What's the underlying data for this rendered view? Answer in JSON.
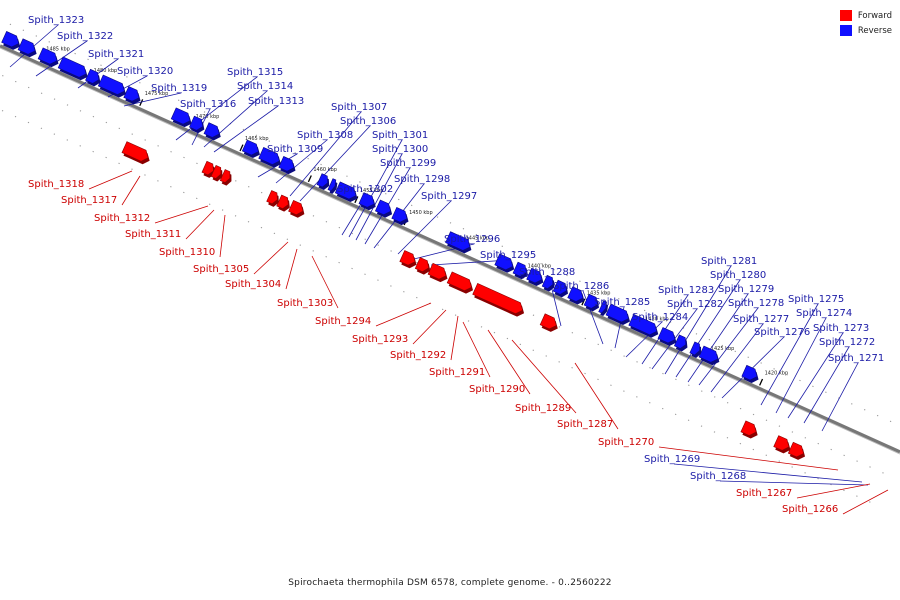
{
  "legend": [
    {
      "label": "Forward",
      "color": "#ff0000"
    },
    {
      "label": "Reverse",
      "color": "#1010ff"
    }
  ],
  "caption": "Spirochaeta thermophila DSM 6578, complete genome. - 0..2560222",
  "colors": {
    "forward_label": "#cc0000",
    "reverse_label": "#1a1aa6",
    "axis": "#777777"
  },
  "scale_labels": [
    "1485 kbp",
    "1480 kbp",
    "1475 kbp",
    "1470 kbp",
    "1465 kbp",
    "1460 kbp",
    "1455 kbp",
    "1450 kbp",
    "1445 kbp",
    "1440 kbp",
    "1435 kbp",
    "1430 kbp",
    "1425 kbp",
    "1420 kbp"
  ],
  "reverse_labels": [
    "Spith_1323",
    "Spith_1322",
    "Spith_1321",
    "Spith_1320",
    "Spith_1319",
    "Spith_1316",
    "Spith_1315",
    "Spith_1314",
    "Spith_1313",
    "Spith_1309",
    "Spith_1308",
    "Spith_1307",
    "Spith_1306",
    "Spith_1302",
    "Spith_1301",
    "Spith_1300",
    "Spith_1299",
    "Spith_1298",
    "Spith_1297",
    "Spith_1296",
    "Spith_1295",
    "Spith_1288",
    "Spith_1286",
    "Spith_1285",
    "Spith_1284",
    "Spith_1283",
    "Spith_1282",
    "Spith_1281",
    "Spith_1280",
    "Spith_1279",
    "Spith_1278",
    "Spith_1277",
    "Spith_1276",
    "Spith_1275",
    "Spith_1274",
    "Spith_1273",
    "Spith_1272",
    "Spith_1271",
    "Spith_1269",
    "Spith_1268"
  ],
  "forward_labels": [
    "Spith_1318",
    "Spith_1317",
    "Spith_1312",
    "Spith_1311",
    "Spith_1310",
    "Spith_1305",
    "Spith_1304",
    "Spith_1303",
    "Spith_1294",
    "Spith_1293",
    "Spith_1292",
    "Spith_1291",
    "Spith_1290",
    "Spith_1289",
    "Spith_1287",
    "Spith_1270",
    "Spith_1267",
    "Spith_1266"
  ]
}
